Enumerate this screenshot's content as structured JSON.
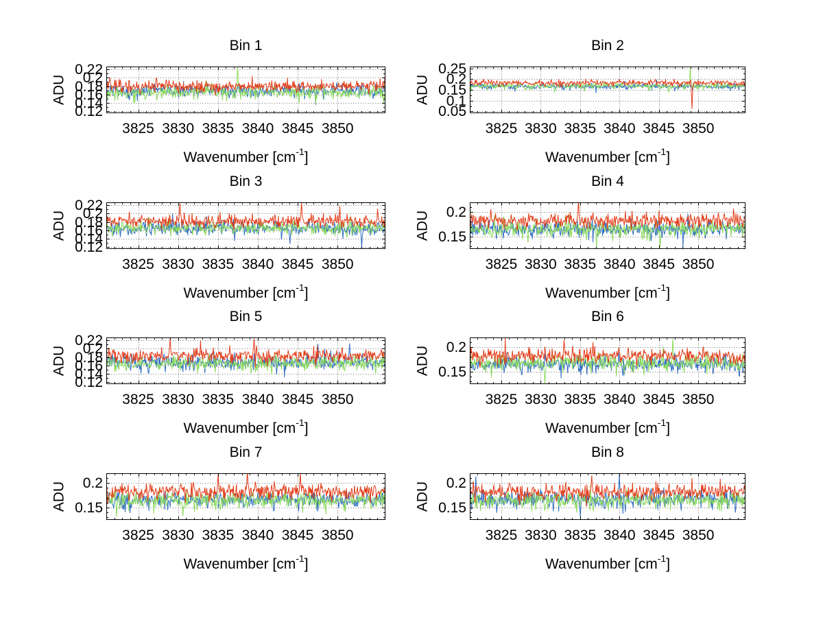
{
  "figure": {
    "background": "#ffffff",
    "axis_color": "#000000",
    "grid_color": "#3a3a3a",
    "ylabel": "ADU",
    "xlabel": {
      "pre": "Wavenumber [cm",
      "sup": "-1",
      "post": "]"
    },
    "series_colors": {
      "blue": "#2d6bc1",
      "green": "#8bd95c",
      "red": "#e23b18"
    }
  },
  "chart_data": [
    {
      "type": "line",
      "title": "Bin 1",
      "xlabel": "Wavenumber [cm^-1]",
      "ylabel": "ADU",
      "grid": true,
      "legend": false,
      "n_points": 460,
      "xlim": [
        3821,
        3856
      ],
      "xticks": [
        3825,
        3830,
        3835,
        3840,
        3845,
        3850
      ],
      "x_minor_step": 1,
      "ylim": [
        0.115,
        0.227
      ],
      "y_minor_step": 0.01,
      "yticks": [
        {
          "v": 0.12,
          "label": "0.12"
        },
        {
          "v": 0.14,
          "label": "0.14"
        },
        {
          "v": 0.16,
          "label": "0.16"
        },
        {
          "v": 0.18,
          "label": "0.18"
        },
        {
          "v": 0.2,
          "label": "0.2"
        },
        {
          "v": 0.22,
          "label": "0.22"
        }
      ],
      "series": [
        {
          "name": "spectrum-blue",
          "color": "#2d6bc1",
          "mean": 0.168,
          "noise_sd": 0.0075,
          "down_p": 0.02,
          "down_amp": 0.028,
          "up_p": 0.008,
          "up_amp": 0.02,
          "seed": 11
        },
        {
          "name": "spectrum-green",
          "color": "#8bd95c",
          "mean": 0.165,
          "noise_sd": 0.008,
          "down_p": 0.03,
          "down_amp": 0.027,
          "up_p": 0.006,
          "up_amp": 0.02,
          "seed": 12
        },
        {
          "name": "spectrum-red",
          "color": "#e23b18",
          "mean": 0.18,
          "noise_sd": 0.0075,
          "down_p": 0.004,
          "down_amp": 0.02,
          "up_p": 0.015,
          "up_amp": 0.022,
          "seed": 13
        }
      ],
      "anomalies": [
        {
          "series": 1,
          "x": 3837.5,
          "y": 0.231
        }
      ]
    },
    {
      "type": "line",
      "title": "Bin 2",
      "xlabel": "Wavenumber [cm^-1]",
      "ylabel": "ADU",
      "grid": true,
      "legend": false,
      "n_points": 460,
      "xlim": [
        3821,
        3856
      ],
      "xticks": [
        3825,
        3830,
        3835,
        3840,
        3845,
        3850
      ],
      "x_minor_step": 1,
      "ylim": [
        0.042,
        0.258
      ],
      "y_minor_step": 0.025,
      "yticks": [
        {
          "v": 0.05,
          "label": "0.05"
        },
        {
          "v": 0.1,
          "label": "0.1"
        },
        {
          "v": 0.15,
          "label": "0.15"
        },
        {
          "v": 0.2,
          "label": "0.2"
        },
        {
          "v": 0.25,
          "label": "0.25"
        }
      ],
      "series": [
        {
          "name": "spectrum-blue",
          "color": "#2d6bc1",
          "mean": 0.166,
          "noise_sd": 0.007,
          "down_p": 0.02,
          "down_amp": 0.022,
          "up_p": 0.008,
          "up_amp": 0.018,
          "seed": 21
        },
        {
          "name": "spectrum-green",
          "color": "#8bd95c",
          "mean": 0.168,
          "noise_sd": 0.0075,
          "down_p": 0.025,
          "down_amp": 0.022,
          "up_p": 0.007,
          "up_amp": 0.02,
          "seed": 22
        },
        {
          "name": "spectrum-red",
          "color": "#e23b18",
          "mean": 0.182,
          "noise_sd": 0.007,
          "down_p": 0.004,
          "down_amp": 0.018,
          "up_p": 0.015,
          "up_amp": 0.02,
          "seed": 23
        }
      ],
      "anomalies": [
        {
          "series": 2,
          "x": 3849.2,
          "y": 0.062
        },
        {
          "series": 1,
          "x": 3849.0,
          "y": 0.252
        }
      ]
    },
    {
      "type": "line",
      "title": "Bin 3",
      "xlabel": "Wavenumber [cm^-1]",
      "ylabel": "ADU",
      "grid": true,
      "legend": false,
      "n_points": 460,
      "xlim": [
        3821,
        3856
      ],
      "xticks": [
        3825,
        3830,
        3835,
        3840,
        3845,
        3850
      ],
      "x_minor_step": 1,
      "ylim": [
        0.115,
        0.227
      ],
      "y_minor_step": 0.01,
      "yticks": [
        {
          "v": 0.12,
          "label": "0.12"
        },
        {
          "v": 0.14,
          "label": "0.14"
        },
        {
          "v": 0.16,
          "label": "0.16"
        },
        {
          "v": 0.18,
          "label": "0.18"
        },
        {
          "v": 0.2,
          "label": "0.2"
        },
        {
          "v": 0.22,
          "label": "0.22"
        }
      ],
      "series": [
        {
          "name": "spectrum-blue",
          "color": "#2d6bc1",
          "mean": 0.166,
          "noise_sd": 0.008,
          "down_p": 0.025,
          "down_amp": 0.03,
          "up_p": 0.008,
          "up_amp": 0.02,
          "seed": 31
        },
        {
          "name": "spectrum-green",
          "color": "#8bd95c",
          "mean": 0.166,
          "noise_sd": 0.008,
          "down_p": 0.03,
          "down_amp": 0.026,
          "up_p": 0.006,
          "up_amp": 0.02,
          "seed": 32
        },
        {
          "name": "spectrum-red",
          "color": "#e23b18",
          "mean": 0.181,
          "noise_sd": 0.008,
          "down_p": 0.004,
          "down_amp": 0.02,
          "up_p": 0.018,
          "up_amp": 0.024,
          "seed": 33
        }
      ],
      "anomalies": [
        {
          "series": 0,
          "x": 3844.0,
          "y": 0.127
        },
        {
          "series": 0,
          "x": 3853.0,
          "y": 0.118
        },
        {
          "series": 2,
          "x": 3830.2,
          "y": 0.224
        },
        {
          "series": 2,
          "x": 3845.5,
          "y": 0.228
        }
      ]
    },
    {
      "type": "line",
      "title": "Bin 4",
      "xlabel": "Wavenumber [cm^-1]",
      "ylabel": "ADU",
      "grid": true,
      "legend": false,
      "n_points": 460,
      "xlim": [
        3821,
        3856
      ],
      "xticks": [
        3825,
        3830,
        3835,
        3840,
        3845,
        3850
      ],
      "x_minor_step": 1,
      "ylim": [
        0.125,
        0.2195
      ],
      "y_minor_step": 0.01,
      "yticks": [
        {
          "v": 0.15,
          "label": "0.15"
        },
        {
          "v": 0.2,
          "label": "0.2"
        }
      ],
      "series": [
        {
          "name": "spectrum-blue",
          "color": "#2d6bc1",
          "mean": 0.165,
          "noise_sd": 0.008,
          "down_p": 0.025,
          "down_amp": 0.025,
          "up_p": 0.008,
          "up_amp": 0.02,
          "seed": 41
        },
        {
          "name": "spectrum-green",
          "color": "#8bd95c",
          "mean": 0.166,
          "noise_sd": 0.0085,
          "down_p": 0.03,
          "down_amp": 0.025,
          "up_p": 0.008,
          "up_amp": 0.022,
          "seed": 42
        },
        {
          "name": "spectrum-red",
          "color": "#e23b18",
          "mean": 0.182,
          "noise_sd": 0.008,
          "down_p": 0.004,
          "down_amp": 0.018,
          "up_p": 0.018,
          "up_amp": 0.024,
          "seed": 43
        }
      ],
      "anomalies": [
        {
          "series": 2,
          "x": 3834.8,
          "y": 0.224
        },
        {
          "series": 1,
          "x": 3845.2,
          "y": 0.128
        }
      ]
    },
    {
      "type": "line",
      "title": "Bin 5",
      "xlabel": "Wavenumber [cm^-1]",
      "ylabel": "ADU",
      "grid": true,
      "legend": false,
      "n_points": 460,
      "xlim": [
        3821,
        3856
      ],
      "xticks": [
        3825,
        3830,
        3835,
        3840,
        3845,
        3850
      ],
      "x_minor_step": 1,
      "ylim": [
        0.115,
        0.227
      ],
      "y_minor_step": 0.01,
      "yticks": [
        {
          "v": 0.12,
          "label": "0.12"
        },
        {
          "v": 0.14,
          "label": "0.14"
        },
        {
          "v": 0.16,
          "label": "0.16"
        },
        {
          "v": 0.18,
          "label": "0.18"
        },
        {
          "v": 0.2,
          "label": "0.2"
        },
        {
          "v": 0.22,
          "label": "0.22"
        }
      ],
      "series": [
        {
          "name": "spectrum-blue",
          "color": "#2d6bc1",
          "mean": 0.167,
          "noise_sd": 0.009,
          "down_p": 0.025,
          "down_amp": 0.028,
          "up_p": 0.01,
          "up_amp": 0.024,
          "seed": 51
        },
        {
          "name": "spectrum-green",
          "color": "#8bd95c",
          "mean": 0.164,
          "noise_sd": 0.009,
          "down_p": 0.035,
          "down_amp": 0.026,
          "up_p": 0.006,
          "up_amp": 0.02,
          "seed": 52
        },
        {
          "name": "spectrum-red",
          "color": "#e23b18",
          "mean": 0.182,
          "noise_sd": 0.008,
          "down_p": 0.004,
          "down_amp": 0.02,
          "up_p": 0.018,
          "up_amp": 0.024,
          "seed": 53
        }
      ],
      "anomalies": [
        {
          "series": 2,
          "x": 3829.0,
          "y": 0.226
        },
        {
          "series": 2,
          "x": 3839.5,
          "y": 0.224
        },
        {
          "series": 0,
          "x": 3847.5,
          "y": 0.212
        },
        {
          "series": 0,
          "x": 3851.5,
          "y": 0.213
        }
      ]
    },
    {
      "type": "line",
      "title": "Bin 6",
      "xlabel": "Wavenumber [cm^-1]",
      "ylabel": "ADU",
      "grid": true,
      "legend": false,
      "n_points": 460,
      "xlim": [
        3821,
        3856
      ],
      "xticks": [
        3825,
        3830,
        3835,
        3840,
        3845,
        3850
      ],
      "x_minor_step": 1,
      "ylim": [
        0.125,
        0.2195
      ],
      "y_minor_step": 0.01,
      "yticks": [
        {
          "v": 0.15,
          "label": "0.15"
        },
        {
          "v": 0.2,
          "label": "0.2"
        }
      ],
      "series": [
        {
          "name": "spectrum-blue",
          "color": "#2d6bc1",
          "mean": 0.166,
          "noise_sd": 0.008,
          "down_p": 0.02,
          "down_amp": 0.022,
          "up_p": 0.008,
          "up_amp": 0.02,
          "seed": 61
        },
        {
          "name": "spectrum-green",
          "color": "#8bd95c",
          "mean": 0.168,
          "noise_sd": 0.0085,
          "down_p": 0.03,
          "down_amp": 0.026,
          "up_p": 0.009,
          "up_amp": 0.022,
          "seed": 62
        },
        {
          "name": "spectrum-red",
          "color": "#e23b18",
          "mean": 0.182,
          "noise_sd": 0.0075,
          "down_p": 0.004,
          "down_amp": 0.018,
          "up_p": 0.016,
          "up_amp": 0.022,
          "seed": 63
        }
      ],
      "anomalies": [
        {
          "series": 1,
          "x": 3846.8,
          "y": 0.217
        },
        {
          "series": 1,
          "x": 3830.5,
          "y": 0.124
        },
        {
          "series": 2,
          "x": 3833.0,
          "y": 0.215
        }
      ]
    },
    {
      "type": "line",
      "title": "Bin 7",
      "xlabel": "Wavenumber [cm^-1]",
      "ylabel": "ADU",
      "grid": true,
      "legend": false,
      "n_points": 460,
      "xlim": [
        3821,
        3856
      ],
      "xticks": [
        3825,
        3830,
        3835,
        3840,
        3845,
        3850
      ],
      "x_minor_step": 1,
      "ylim": [
        0.125,
        0.2195
      ],
      "y_minor_step": 0.01,
      "yticks": [
        {
          "v": 0.15,
          "label": "0.15"
        },
        {
          "v": 0.2,
          "label": "0.2"
        }
      ],
      "series": [
        {
          "name": "spectrum-blue",
          "color": "#2d6bc1",
          "mean": 0.166,
          "noise_sd": 0.008,
          "down_p": 0.022,
          "down_amp": 0.024,
          "up_p": 0.008,
          "up_amp": 0.02,
          "seed": 71
        },
        {
          "name": "spectrum-green",
          "color": "#8bd95c",
          "mean": 0.165,
          "noise_sd": 0.0085,
          "down_p": 0.03,
          "down_amp": 0.026,
          "up_p": 0.007,
          "up_amp": 0.02,
          "seed": 72
        },
        {
          "name": "spectrum-red",
          "color": "#e23b18",
          "mean": 0.181,
          "noise_sd": 0.008,
          "down_p": 0.004,
          "down_amp": 0.018,
          "up_p": 0.018,
          "up_amp": 0.024,
          "seed": 73
        }
      ],
      "anomalies": [
        {
          "series": 2,
          "x": 3838.7,
          "y": 0.226
        },
        {
          "series": 2,
          "x": 3835.0,
          "y": 0.218
        },
        {
          "series": 2,
          "x": 3845.3,
          "y": 0.221
        },
        {
          "series": 1,
          "x": 3830.6,
          "y": 0.133
        }
      ]
    },
    {
      "type": "line",
      "title": "Bin 8",
      "xlabel": "Wavenumber [cm^-1]",
      "ylabel": "ADU",
      "grid": true,
      "legend": false,
      "n_points": 460,
      "xlim": [
        3821,
        3856
      ],
      "xticks": [
        3825,
        3830,
        3835,
        3840,
        3845,
        3850
      ],
      "x_minor_step": 1,
      "ylim": [
        0.125,
        0.2195
      ],
      "y_minor_step": 0.01,
      "yticks": [
        {
          "v": 0.15,
          "label": "0.15"
        },
        {
          "v": 0.2,
          "label": "0.2"
        }
      ],
      "series": [
        {
          "name": "spectrum-blue",
          "color": "#2d6bc1",
          "mean": 0.167,
          "noise_sd": 0.009,
          "down_p": 0.025,
          "down_amp": 0.028,
          "up_p": 0.012,
          "up_amp": 0.026,
          "seed": 81
        },
        {
          "name": "spectrum-green",
          "color": "#8bd95c",
          "mean": 0.165,
          "noise_sd": 0.0085,
          "down_p": 0.03,
          "down_amp": 0.026,
          "up_p": 0.007,
          "up_amp": 0.02,
          "seed": 82
        },
        {
          "name": "spectrum-red",
          "color": "#e23b18",
          "mean": 0.181,
          "noise_sd": 0.008,
          "down_p": 0.004,
          "down_amp": 0.018,
          "up_p": 0.016,
          "up_amp": 0.024,
          "seed": 83
        }
      ],
      "anomalies": [
        {
          "series": 0,
          "x": 3821.8,
          "y": 0.213
        },
        {
          "series": 0,
          "x": 3840.0,
          "y": 0.217
        },
        {
          "series": 2,
          "x": 3836.5,
          "y": 0.215
        },
        {
          "series": 0,
          "x": 3835.0,
          "y": 0.131
        }
      ]
    }
  ]
}
